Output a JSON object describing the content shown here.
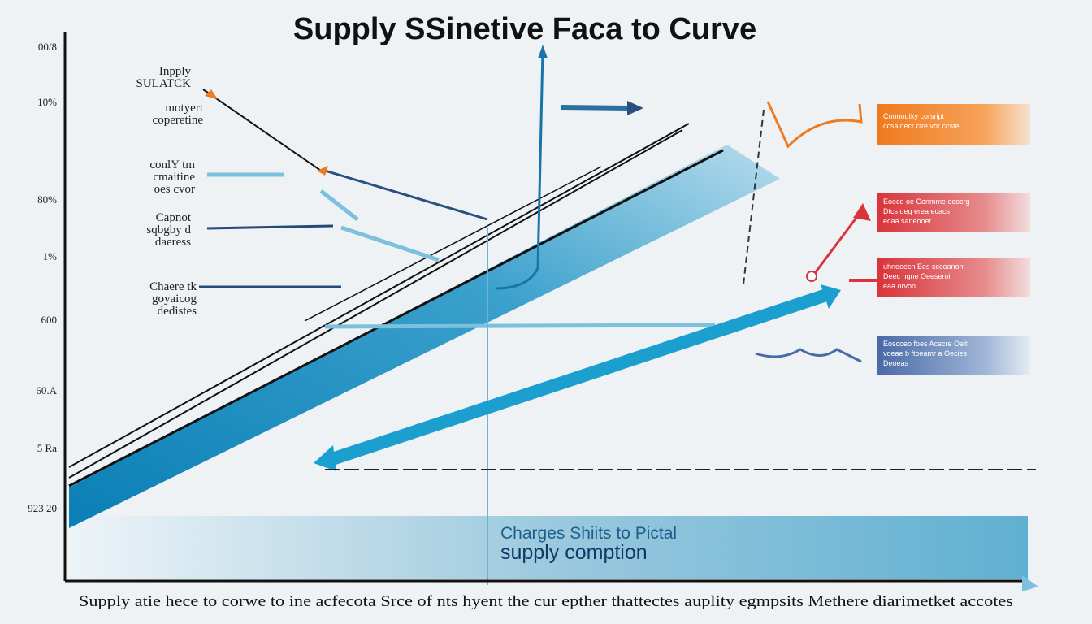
{
  "title": "Supply SSinetive Faca to Curve",
  "axis_labels": [
    "00/8",
    "10%",
    "80%",
    "1%",
    "600",
    "60.A",
    "5 Ra",
    "923 20"
  ],
  "left_labels": [
    [
      "Inpply",
      "SULATCK"
    ],
    [
      "motyert",
      "coperetine"
    ],
    [
      "conlY tm",
      "cmaitine",
      "oes cvor"
    ],
    [
      "Capnot",
      "sqbgby d",
      "daeress"
    ],
    [
      "Chaere tk",
      "goyaicog",
      "dedistes"
    ]
  ],
  "right_boxes": [
    [
      "Connoutky corsript",
      "ccsaldecr cire vor ccste"
    ],
    [
      "Eoecd oe Conmme ecocrg",
      "Dtcs deg erea ecacs",
      "ecaa saneooet"
    ],
    [
      "uhnoeecn Ees sccoanon",
      "Deec ngne Oeeseroi",
      "eaa orvon"
    ],
    [
      "Eoscoeo foes Acecre Oeitl",
      "voeae b ftoeamr a Oecies",
      "Deoeas"
    ]
  ],
  "banner": [
    "Charges Shiits to Pictal",
    "supply comption"
  ],
  "footer": "Supply atie hece to corwe to ine acfecota Srce of nts hyent the cur epther thattectes auplity egmpsits Methere diarimetket accotes"
}
